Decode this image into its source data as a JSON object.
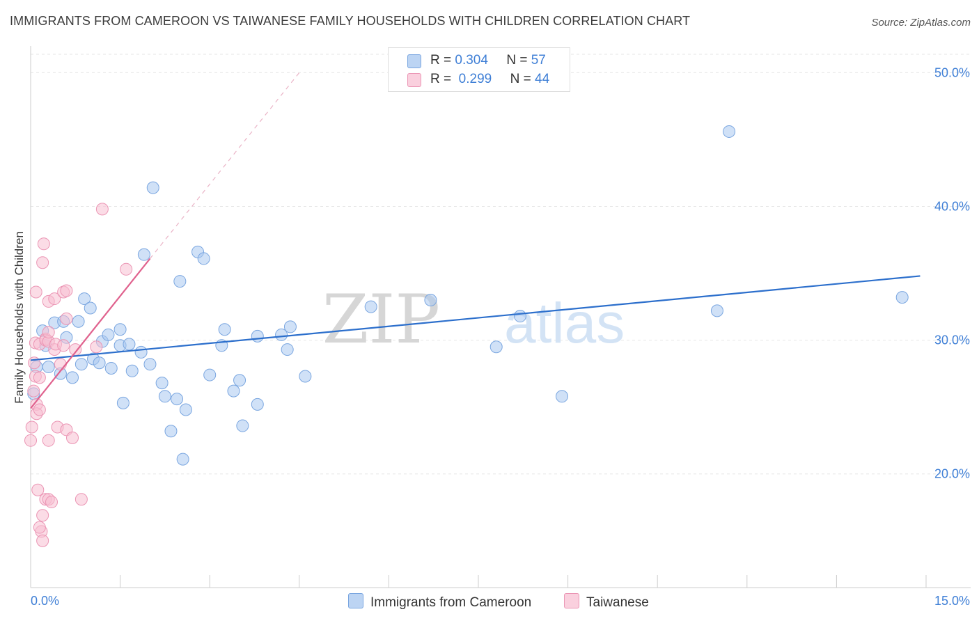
{
  "title": "IMMIGRANTS FROM CAMEROON VS TAIWANESE FAMILY HOUSEHOLDS WITH CHILDREN CORRELATION CHART",
  "source": "Source: ZipAtlas.com",
  "watermark": {
    "zip": "ZIP",
    "atlas": "atlas"
  },
  "legend": {
    "r_label": "R =",
    "n_label": "N =",
    "series1": {
      "r": "0.304",
      "n": "57"
    },
    "series2": {
      "r": "0.299",
      "n": "44"
    }
  },
  "chart_data": {
    "type": "scatter",
    "title": "IMMIGRANTS FROM CAMEROON VS TAIWANESE FAMILY HOUSEHOLDS WITH CHILDREN CORRELATION CHART",
    "xlabel": "",
    "ylabel": "Family Households with Children",
    "xlim": [
      0,
      15
    ],
    "ylim": [
      11.5,
      52
    ],
    "x_tick_labels": {
      "left": "0.0%",
      "right": "15.0%"
    },
    "y_ticks": [
      {
        "value": 20,
        "label": "20.0%"
      },
      {
        "value": 30,
        "label": "30.0%"
      },
      {
        "value": 40,
        "label": "40.0%"
      },
      {
        "value": 50,
        "label": "50.0%"
      }
    ],
    "series": [
      {
        "name": "Immigrants from Cameroon",
        "color": "#a9c8f0",
        "stroke": "#7aa6e0",
        "trend_color": "#2c6fcc",
        "trend": {
          "x0": 0.0,
          "y0": 28.5,
          "x1": 14.9,
          "y1": 34.8
        },
        "points": [
          [
            0.05,
            26.0
          ],
          [
            0.1,
            28.0
          ],
          [
            0.2,
            30.7
          ],
          [
            0.25,
            29.6
          ],
          [
            0.3,
            28.0
          ],
          [
            0.4,
            31.3
          ],
          [
            0.5,
            27.5
          ],
          [
            0.55,
            31.4
          ],
          [
            0.6,
            30.2
          ],
          [
            0.7,
            27.2
          ],
          [
            0.8,
            31.4
          ],
          [
            0.85,
            28.2
          ],
          [
            0.9,
            33.1
          ],
          [
            1.0,
            32.4
          ],
          [
            1.05,
            28.6
          ],
          [
            1.15,
            28.3
          ],
          [
            1.2,
            29.9
          ],
          [
            1.3,
            30.4
          ],
          [
            1.35,
            27.9
          ],
          [
            1.5,
            30.8
          ],
          [
            1.5,
            29.6
          ],
          [
            1.55,
            25.3
          ],
          [
            1.65,
            29.7
          ],
          [
            1.7,
            27.7
          ],
          [
            1.85,
            29.1
          ],
          [
            1.9,
            36.4
          ],
          [
            2.0,
            28.2
          ],
          [
            2.05,
            41.4
          ],
          [
            2.2,
            26.8
          ],
          [
            2.25,
            25.8
          ],
          [
            2.35,
            23.2
          ],
          [
            2.45,
            25.6
          ],
          [
            2.5,
            34.4
          ],
          [
            2.6,
            24.8
          ],
          [
            2.55,
            21.1
          ],
          [
            2.8,
            36.6
          ],
          [
            2.9,
            36.1
          ],
          [
            3.0,
            27.4
          ],
          [
            3.2,
            29.6
          ],
          [
            3.25,
            30.8
          ],
          [
            3.4,
            26.2
          ],
          [
            3.5,
            27.0
          ],
          [
            3.55,
            23.6
          ],
          [
            3.8,
            25.2
          ],
          [
            3.8,
            30.3
          ],
          [
            4.2,
            30.4
          ],
          [
            4.3,
            29.3
          ],
          [
            4.35,
            31.0
          ],
          [
            4.6,
            27.3
          ],
          [
            5.7,
            32.5
          ],
          [
            6.7,
            33.0
          ],
          [
            7.8,
            29.5
          ],
          [
            8.2,
            31.8
          ],
          [
            8.9,
            25.8
          ],
          [
            11.5,
            32.2
          ],
          [
            11.7,
            45.6
          ],
          [
            14.6,
            33.2
          ]
        ]
      },
      {
        "name": "Taiwanese",
        "color": "#f7bfd2",
        "stroke": "#eb95b4",
        "trend_color": "#e0628e",
        "trend": {
          "x0": 0.0,
          "y0": 24.9,
          "x1": 2.0,
          "y1": 36.1
        },
        "dashed_extension": {
          "x0": 2.0,
          "y0": 36.1,
          "x1": 4.5,
          "y1": 50.0
        },
        "points": [
          [
            0.0,
            22.5
          ],
          [
            0.02,
            23.5
          ],
          [
            0.05,
            26.2
          ],
          [
            0.06,
            28.3
          ],
          [
            0.08,
            29.8
          ],
          [
            0.08,
            27.3
          ],
          [
            0.09,
            33.6
          ],
          [
            0.1,
            25.2
          ],
          [
            0.1,
            24.5
          ],
          [
            0.12,
            18.8
          ],
          [
            0.15,
            29.7
          ],
          [
            0.15,
            27.2
          ],
          [
            0.15,
            24.8
          ],
          [
            0.18,
            15.7
          ],
          [
            0.15,
            16.0
          ],
          [
            0.2,
            35.8
          ],
          [
            0.2,
            15.0
          ],
          [
            0.2,
            16.9
          ],
          [
            0.22,
            37.2
          ],
          [
            0.25,
            18.1
          ],
          [
            0.25,
            30.1
          ],
          [
            0.25,
            30.0
          ],
          [
            0.3,
            22.5
          ],
          [
            0.3,
            18.1
          ],
          [
            0.3,
            29.9
          ],
          [
            0.3,
            30.6
          ],
          [
            0.3,
            32.9
          ],
          [
            0.35,
            17.9
          ],
          [
            0.4,
            33.1
          ],
          [
            0.4,
            29.3
          ],
          [
            0.42,
            29.7
          ],
          [
            0.45,
            23.5
          ],
          [
            0.5,
            28.2
          ],
          [
            0.55,
            33.6
          ],
          [
            0.55,
            29.6
          ],
          [
            0.6,
            33.7
          ],
          [
            0.6,
            23.3
          ],
          [
            0.6,
            31.6
          ],
          [
            0.7,
            22.7
          ],
          [
            0.75,
            29.3
          ],
          [
            0.85,
            18.1
          ],
          [
            1.1,
            29.5
          ],
          [
            1.2,
            39.8
          ],
          [
            1.6,
            35.3
          ]
        ]
      }
    ]
  }
}
